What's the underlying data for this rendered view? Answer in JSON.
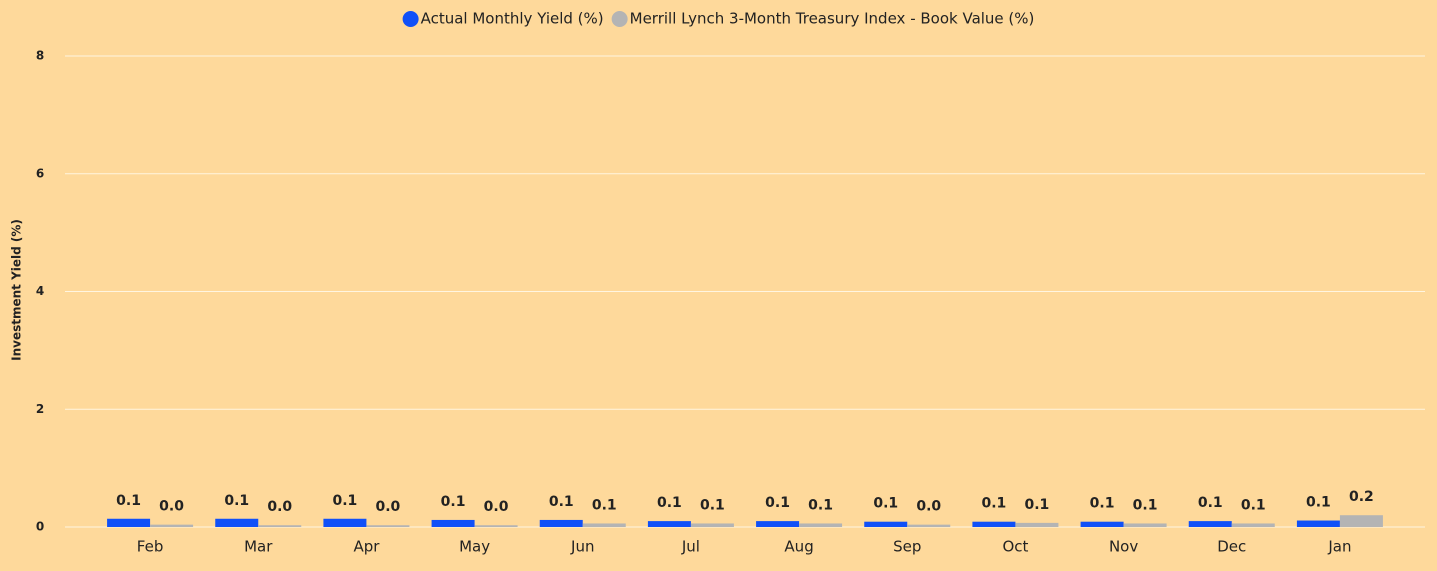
{
  "chart_data": {
    "type": "bar",
    "y_label": "Investment Yield (%)",
    "categories": [
      "Feb",
      "Mar",
      "Apr",
      "May",
      "Jun",
      "Jul",
      "Aug",
      "Sep",
      "Oct",
      "Nov",
      "Dec",
      "Jan"
    ],
    "series": [
      {
        "name": "Actual Monthly Yield (%)",
        "color": "#1050f8",
        "values": [
          0.14,
          0.14,
          0.14,
          0.12,
          0.12,
          0.1,
          0.1,
          0.09,
          0.09,
          0.09,
          0.1,
          0.11
        ],
        "value_labels": [
          "0.1",
          "0.1",
          "0.1",
          "0.1",
          "0.1",
          "0.1",
          "0.1",
          "0.1",
          "0.1",
          "0.1",
          "0.1",
          "0.1"
        ]
      },
      {
        "name": "Merrill Lynch 3-Month Treasury Index - Book Value (%)",
        "color": "#b4b4b4",
        "values": [
          0.04,
          0.03,
          0.03,
          0.03,
          0.06,
          0.06,
          0.06,
          0.04,
          0.07,
          0.06,
          0.06,
          0.2
        ],
        "value_labels": [
          "0.0",
          "0.0",
          "0.0",
          "0.0",
          "0.1",
          "0.1",
          "0.1",
          "0.0",
          "0.1",
          "0.1",
          "0.1",
          "0.2"
        ]
      }
    ],
    "ylim": [
      0,
      8
    ],
    "yticks": [
      0,
      2,
      4,
      6,
      8
    ],
    "grid": true,
    "legend": "top"
  }
}
